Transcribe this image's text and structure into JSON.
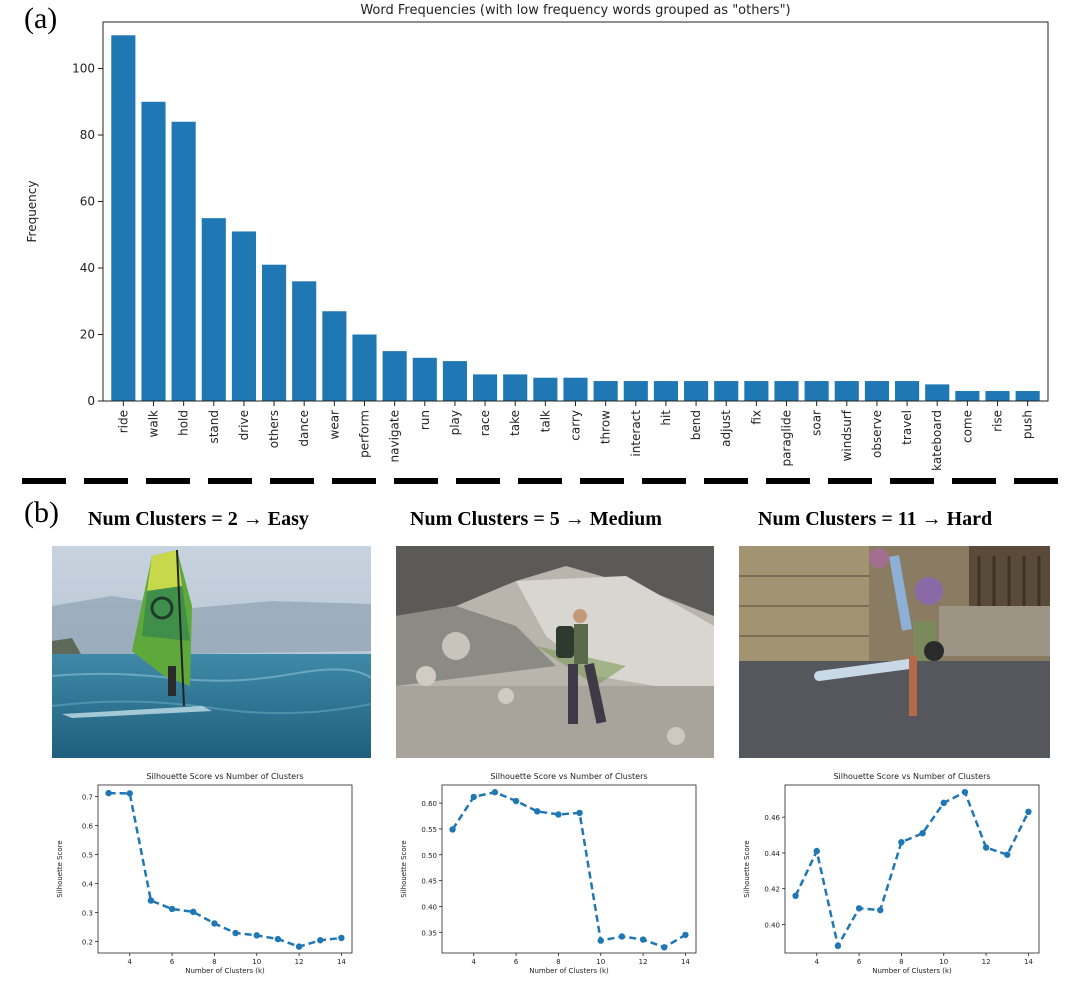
{
  "panel_a": {
    "label": "(a)"
  },
  "panel_b": {
    "label": "(b)",
    "columns": [
      {
        "title": "Num Clusters = 2 → Easy"
      },
      {
        "title": "Num Clusters = 5 → Medium"
      },
      {
        "title": "Num Clusters = 11 → Hard"
      }
    ]
  },
  "colors": {
    "bar": "#1f77b4",
    "line": "#1f77b4"
  },
  "chart_data": [
    {
      "type": "bar",
      "title": "Word Frequencies (with low frequency words grouped as \"others\")",
      "xlabel": "",
      "ylabel": "Frequency",
      "ylim": [
        0,
        114
      ],
      "yticks": [
        0,
        20,
        40,
        60,
        80,
        100
      ],
      "categories": [
        "ride",
        "walk",
        "hold",
        "stand",
        "drive",
        "others",
        "dance",
        "wear",
        "perform",
        "navigate",
        "run",
        "play",
        "race",
        "take",
        "talk",
        "carry",
        "throw",
        "interact",
        "hit",
        "bend",
        "adjust",
        "fix",
        "paraglide",
        "soar",
        "windsurf",
        "observe",
        "travel",
        "skateboard",
        "come",
        "rise",
        "push"
      ],
      "values": [
        110,
        90,
        84,
        55,
        51,
        41,
        36,
        27,
        20,
        15,
        13,
        12,
        8,
        8,
        7,
        7,
        6,
        6,
        6,
        6,
        6,
        6,
        6,
        6,
        6,
        6,
        6,
        5,
        3,
        3,
        3
      ]
    },
    {
      "type": "line",
      "title": "Silhouette Score vs Number of Clusters",
      "xlabel": "Number of Clusters (k)",
      "ylabel": "Silhouette Score",
      "x": [
        3,
        4,
        5,
        6,
        7,
        8,
        9,
        10,
        11,
        12,
        13,
        14
      ],
      "y": [
        0.712,
        0.711,
        0.341,
        0.312,
        0.302,
        0.262,
        0.229,
        0.221,
        0.208,
        0.182,
        0.204,
        0.212
      ],
      "xlim": [
        2.5,
        14.5
      ],
      "ylim": [
        0.16,
        0.74
      ],
      "xticks": [
        4,
        6,
        8,
        10,
        12,
        14
      ],
      "yticks": [
        0.2,
        0.3,
        0.4,
        0.5,
        0.6,
        0.7
      ],
      "ytick_labels": [
        "0.2",
        "0.3",
        "0.4",
        "0.5",
        "0.6",
        "0.7"
      ]
    },
    {
      "type": "line",
      "title": "Silhouette Score vs Number of Clusters",
      "xlabel": "Number of Clusters (k)",
      "ylabel": "Silhouette Score",
      "x": [
        3,
        4,
        5,
        6,
        7,
        8,
        9,
        10,
        11,
        12,
        13,
        14
      ],
      "y": [
        0.549,
        0.612,
        0.621,
        0.604,
        0.584,
        0.578,
        0.581,
        0.334,
        0.342,
        0.336,
        0.321,
        0.345
      ],
      "xlim": [
        2.5,
        14.5
      ],
      "ylim": [
        0.31,
        0.635
      ],
      "xticks": [
        4,
        6,
        8,
        10,
        12,
        14
      ],
      "yticks": [
        0.35,
        0.4,
        0.45,
        0.5,
        0.55,
        0.6
      ],
      "ytick_labels": [
        "0.35",
        "0.40",
        "0.45",
        "0.50",
        "0.55",
        "0.60"
      ]
    },
    {
      "type": "line",
      "title": "Silhouette Score vs Number of Clusters",
      "xlabel": "Number of Clusters (k)",
      "ylabel": "Silhouette Score",
      "x": [
        3,
        4,
        5,
        6,
        7,
        8,
        9,
        10,
        11,
        12,
        13,
        14
      ],
      "y": [
        0.416,
        0.441,
        0.388,
        0.409,
        0.408,
        0.446,
        0.451,
        0.468,
        0.474,
        0.443,
        0.439,
        0.463
      ],
      "xlim": [
        2.5,
        14.5
      ],
      "ylim": [
        0.384,
        0.478
      ],
      "xticks": [
        4,
        6,
        8,
        10,
        12,
        14
      ],
      "yticks": [
        0.4,
        0.42,
        0.44,
        0.46
      ],
      "ytick_labels": [
        "0.40",
        "0.42",
        "0.44",
        "0.46"
      ]
    }
  ]
}
